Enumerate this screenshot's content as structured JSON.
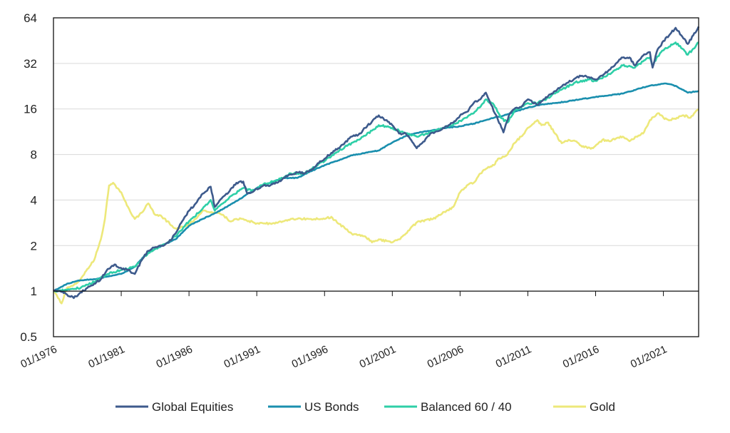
{
  "chart_data": {
    "type": "line",
    "title": "",
    "xlabel": "",
    "ylabel": "",
    "y_scale": "log2",
    "ylim": [
      0.5,
      64
    ],
    "y_ticks": [
      "0.5",
      "1",
      "2",
      "4",
      "8",
      "16",
      "32",
      "64"
    ],
    "xlim": [
      1976.0,
      2023.6
    ],
    "x_ticks": [
      "01/1976",
      "01/1981",
      "01/1986",
      "01/1991",
      "01/1996",
      "01/2001",
      "01/2006",
      "01/2011",
      "01/2016",
      "01/2021"
    ],
    "grid": "horizontal",
    "legend_position": "bottom",
    "series": [
      {
        "name": "Global Equities",
        "color": "#3d5a8c",
        "x": [
          1976.0,
          1976.5,
          1977.0,
          1977.5,
          1978.0,
          1978.5,
          1979.0,
          1979.5,
          1980.0,
          1980.5,
          1981.0,
          1981.5,
          1982.0,
          1982.5,
          1983.0,
          1983.5,
          1984.0,
          1984.5,
          1985.0,
          1985.5,
          1986.0,
          1986.5,
          1987.0,
          1987.6,
          1987.9,
          1988.5,
          1989.0,
          1989.5,
          1990.0,
          1990.3,
          1990.8,
          1991.5,
          1992.0,
          1992.5,
          1993.0,
          1993.5,
          1994.0,
          1994.5,
          1995.0,
          1995.5,
          1996.0,
          1996.5,
          1997.0,
          1997.5,
          1998.0,
          1998.5,
          1999.0,
          1999.5,
          2000.0,
          2000.5,
          2001.0,
          2001.5,
          2002.0,
          2002.8,
          2003.2,
          2003.8,
          2004.5,
          2005.0,
          2005.5,
          2006.0,
          2006.5,
          2007.0,
          2007.5,
          2007.9,
          2008.3,
          2008.8,
          2009.2,
          2009.6,
          2010.0,
          2010.5,
          2011.0,
          2011.7,
          2012.0,
          2012.5,
          2013.0,
          2013.5,
          2014.0,
          2014.5,
          2015.0,
          2015.5,
          2016.0,
          2016.5,
          2017.0,
          2017.5,
          2018.0,
          2018.5,
          2018.9,
          2019.5,
          2020.0,
          2020.2,
          2020.5,
          2021.0,
          2021.5,
          2021.9,
          2022.4,
          2022.8,
          2023.2,
          2023.6
        ],
        "y": [
          1.0,
          1.0,
          0.95,
          0.9,
          0.98,
          1.05,
          1.12,
          1.2,
          1.4,
          1.5,
          1.42,
          1.38,
          1.3,
          1.6,
          1.85,
          1.95,
          2.0,
          2.1,
          2.4,
          2.9,
          3.4,
          3.8,
          4.4,
          4.9,
          3.6,
          4.2,
          4.6,
          5.2,
          5.3,
          4.4,
          4.6,
          5.0,
          5.0,
          5.2,
          5.6,
          5.9,
          6.1,
          6.0,
          6.3,
          7.0,
          7.5,
          8.2,
          8.8,
          9.6,
          10.5,
          10.8,
          12.0,
          13.2,
          14.5,
          13.5,
          12.5,
          11.0,
          11.0,
          8.8,
          9.5,
          11.0,
          11.5,
          12.3,
          13.0,
          14.5,
          15.3,
          17.5,
          18.5,
          20.5,
          17.0,
          13.5,
          11.2,
          14.5,
          16.0,
          16.5,
          18.5,
          17.0,
          18.0,
          19.5,
          21.0,
          22.5,
          24.0,
          25.5,
          26.5,
          26.0,
          25.0,
          26.5,
          29.0,
          32.0,
          35.0,
          35.0,
          31.0,
          36.0,
          38.0,
          30.0,
          38.0,
          45.0,
          50.0,
          55.0,
          48.0,
          43.0,
          49.0,
          56.0
        ]
      },
      {
        "name": "US Bonds",
        "color": "#1a8fae",
        "x": [
          1976.0,
          1977.0,
          1978.0,
          1979.0,
          1980.0,
          1981.0,
          1982.0,
          1982.8,
          1983.5,
          1985.0,
          1986.0,
          1987.0,
          1988.0,
          1989.0,
          1990.0,
          1991.0,
          1992.0,
          1993.0,
          1994.0,
          1995.0,
          1996.0,
          1997.0,
          1998.0,
          1999.0,
          2000.0,
          2001.0,
          2002.0,
          2003.0,
          2004.0,
          2005.0,
          2006.0,
          2007.0,
          2008.0,
          2009.0,
          2010.0,
          2011.0,
          2012.0,
          2013.0,
          2014.0,
          2015.0,
          2016.0,
          2017.0,
          2018.0,
          2019.0,
          2020.0,
          2021.0,
          2021.5,
          2022.0,
          2022.8,
          2023.6
        ],
        "y": [
          1.0,
          1.12,
          1.18,
          1.2,
          1.25,
          1.3,
          1.45,
          1.75,
          1.9,
          2.2,
          2.7,
          3.0,
          3.3,
          3.7,
          4.2,
          4.8,
          5.2,
          5.6,
          5.6,
          6.2,
          6.8,
          7.3,
          7.9,
          8.2,
          8.5,
          9.6,
          10.6,
          11.2,
          11.6,
          12.0,
          12.3,
          12.8,
          13.6,
          14.3,
          15.3,
          16.3,
          17.1,
          17.5,
          18.0,
          18.6,
          19.2,
          19.7,
          20.2,
          21.5,
          22.8,
          23.5,
          23.3,
          22.5,
          20.5,
          21.0
        ]
      },
      {
        "name": "Balanced 60 / 40",
        "color": "#2ecfa7",
        "x": [
          1976.0,
          1977.0,
          1978.0,
          1979.0,
          1980.0,
          1981.0,
          1982.0,
          1983.0,
          1984.0,
          1985.0,
          1986.0,
          1987.0,
          1987.6,
          1987.9,
          1988.5,
          1989.0,
          1990.0,
          1990.8,
          1991.5,
          1992.5,
          1993.5,
          1994.5,
          1995.5,
          1996.5,
          1997.5,
          1998.5,
          1999.5,
          2000.0,
          2000.5,
          2001.0,
          2002.0,
          2002.8,
          2003.5,
          2004.5,
          2005.5,
          2006.5,
          2007.5,
          2007.9,
          2008.5,
          2009.0,
          2009.5,
          2010.0,
          2011.0,
          2011.7,
          2012.5,
          2013.5,
          2014.5,
          2015.5,
          2016.0,
          2016.5,
          2017.5,
          2018.0,
          2018.9,
          2019.5,
          2020.0,
          2020.2,
          2020.5,
          2021.0,
          2021.9,
          2022.4,
          2022.8,
          2023.2,
          2023.6
        ],
        "y": [
          1.0,
          1.02,
          1.05,
          1.15,
          1.3,
          1.38,
          1.45,
          1.8,
          2.0,
          2.3,
          2.9,
          3.5,
          4.0,
          3.4,
          3.8,
          4.2,
          4.8,
          4.6,
          5.1,
          5.4,
          6.0,
          6.0,
          6.8,
          7.8,
          9.0,
          10.0,
          11.5,
          12.5,
          12.3,
          12.0,
          11.0,
          10.5,
          11.0,
          11.8,
          12.6,
          14.0,
          16.5,
          18.5,
          17.0,
          14.0,
          13.0,
          15.5,
          17.5,
          17.5,
          19.0,
          21.5,
          24.0,
          25.0,
          24.5,
          25.5,
          29.0,
          31.0,
          30.0,
          33.0,
          35.0,
          30.5,
          35.0,
          39.0,
          44.0,
          40.0,
          36.5,
          40.0,
          44.0
        ]
      },
      {
        "name": "Gold",
        "color": "#ede87a",
        "x": [
          1976.0,
          1976.6,
          1977.0,
          1977.5,
          1978.0,
          1978.5,
          1979.0,
          1979.5,
          1979.8,
          1980.1,
          1980.4,
          1981.0,
          1981.5,
          1982.0,
          1982.5,
          1983.0,
          1983.5,
          1984.0,
          1985.0,
          1985.8,
          1986.5,
          1987.0,
          1987.8,
          1988.5,
          1989.0,
          1989.5,
          1990.0,
          1991.0,
          1992.0,
          1993.0,
          1993.5,
          1994.0,
          1995.0,
          1996.0,
          1996.5,
          1997.0,
          1997.5,
          1998.0,
          1999.0,
          1999.5,
          2000.0,
          2001.0,
          2001.5,
          2002.0,
          2002.5,
          2003.0,
          2004.0,
          2005.0,
          2005.5,
          2006.0,
          2006.5,
          2007.0,
          2007.5,
          2008.0,
          2008.5,
          2008.8,
          2009.5,
          2010.0,
          2010.5,
          2011.0,
          2011.7,
          2012.0,
          2012.5,
          2013.0,
          2013.5,
          2014.0,
          2014.5,
          2015.0,
          2015.8,
          2016.5,
          2017.0,
          2017.5,
          2018.0,
          2018.5,
          2019.0,
          2019.5,
          2020.0,
          2020.6,
          2021.0,
          2021.5,
          2022.0,
          2022.5,
          2023.0,
          2023.6
        ],
        "y": [
          1.0,
          0.83,
          1.05,
          1.1,
          1.2,
          1.4,
          1.6,
          2.2,
          3.0,
          5.0,
          5.2,
          4.5,
          3.6,
          3.0,
          3.3,
          3.8,
          3.2,
          3.1,
          2.6,
          2.7,
          3.0,
          3.4,
          3.3,
          3.2,
          2.9,
          3.0,
          3.0,
          2.8,
          2.8,
          2.9,
          3.0,
          3.0,
          3.0,
          3.0,
          3.1,
          2.8,
          2.6,
          2.4,
          2.3,
          2.1,
          2.2,
          2.1,
          2.2,
          2.4,
          2.7,
          2.9,
          3.0,
          3.4,
          3.6,
          4.5,
          5.0,
          5.2,
          6.0,
          6.5,
          6.8,
          7.5,
          8.0,
          9.5,
          10.5,
          12.0,
          13.5,
          12.5,
          13.0,
          11.0,
          9.5,
          10.0,
          9.8,
          9.0,
          8.8,
          10.0,
          9.8,
          10.2,
          10.5,
          9.8,
          10.5,
          11.0,
          13.5,
          15.0,
          14.0,
          13.5,
          14.0,
          14.5,
          14.0,
          16.0
        ]
      }
    ]
  }
}
